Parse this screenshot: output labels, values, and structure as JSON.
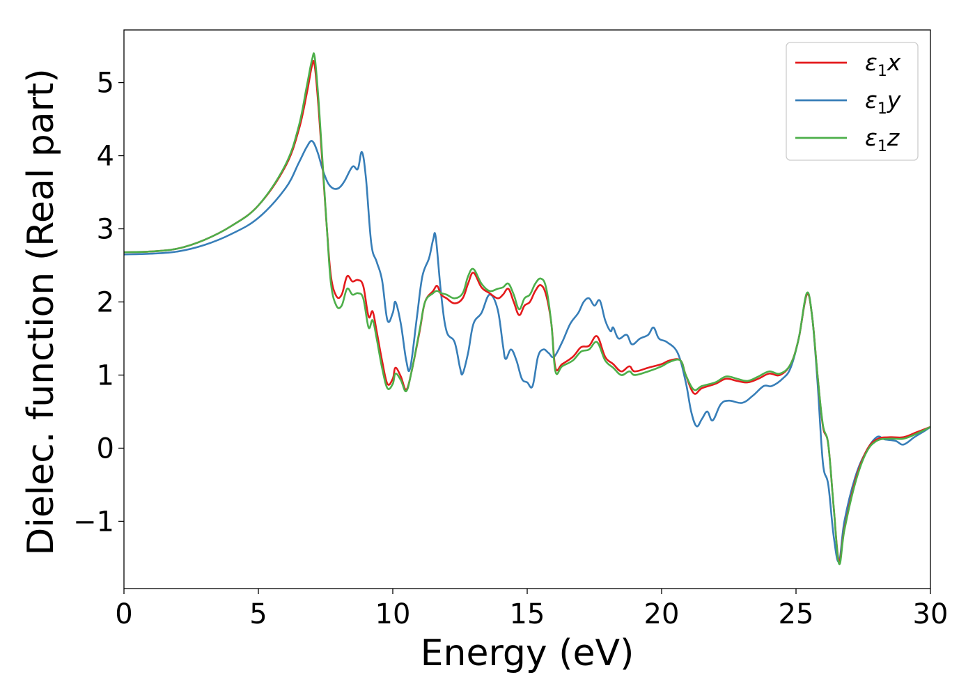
{
  "chart_data": {
    "type": "line",
    "title": "",
    "xlabel": "Energy (eV)",
    "ylabel": "Dielec. function (Real part)",
    "xlim": [
      0,
      30
    ],
    "ylim": [
      -1.92,
      5.72
    ],
    "x_ticks": [
      0,
      5,
      10,
      15,
      20,
      25,
      30
    ],
    "x_tick_labels": [
      "0",
      "5",
      "10",
      "15",
      "20",
      "25",
      "30"
    ],
    "y_ticks": [
      -1,
      0,
      1,
      2,
      3,
      4,
      5
    ],
    "y_tick_labels": [
      "−1",
      "0",
      "1",
      "2",
      "3",
      "4",
      "5"
    ],
    "grid": false,
    "legend_position": "top-right",
    "series": [
      {
        "name": "ε₁x",
        "legend": {
          "symbol": "ε",
          "sub": "1",
          "suffix": "x"
        },
        "color": "#e41a1c",
        "points": [
          [
            0,
            2.68
          ],
          [
            1,
            2.69
          ],
          [
            2,
            2.73
          ],
          [
            3,
            2.85
          ],
          [
            4,
            3.04
          ],
          [
            5,
            3.32
          ],
          [
            6,
            3.85
          ],
          [
            6.5,
            4.35
          ],
          [
            6.8,
            4.85
          ],
          [
            7.0,
            5.24
          ],
          [
            7.1,
            5.22
          ],
          [
            7.25,
            4.6
          ],
          [
            7.4,
            3.8
          ],
          [
            7.55,
            3.0
          ],
          [
            7.7,
            2.35
          ],
          [
            7.9,
            2.08
          ],
          [
            8.1,
            2.1
          ],
          [
            8.3,
            2.35
          ],
          [
            8.5,
            2.28
          ],
          [
            8.7,
            2.3
          ],
          [
            8.9,
            2.22
          ],
          [
            9.1,
            1.8
          ],
          [
            9.25,
            1.87
          ],
          [
            9.4,
            1.6
          ],
          [
            9.6,
            1.2
          ],
          [
            9.8,
            0.88
          ],
          [
            10.0,
            0.95
          ],
          [
            10.1,
            1.1
          ],
          [
            10.3,
            0.98
          ],
          [
            10.5,
            0.8
          ],
          [
            10.7,
            1.05
          ],
          [
            11.0,
            1.6
          ],
          [
            11.2,
            2.0
          ],
          [
            11.5,
            2.15
          ],
          [
            11.65,
            2.22
          ],
          [
            11.8,
            2.1
          ],
          [
            12.0,
            2.05
          ],
          [
            12.3,
            1.98
          ],
          [
            12.6,
            2.05
          ],
          [
            12.8,
            2.25
          ],
          [
            13.0,
            2.4
          ],
          [
            13.3,
            2.2
          ],
          [
            13.6,
            2.12
          ],
          [
            13.9,
            2.05
          ],
          [
            14.1,
            2.1
          ],
          [
            14.3,
            2.18
          ],
          [
            14.5,
            2.0
          ],
          [
            14.7,
            1.82
          ],
          [
            14.9,
            1.95
          ],
          [
            15.1,
            2.0
          ],
          [
            15.3,
            2.15
          ],
          [
            15.5,
            2.23
          ],
          [
            15.7,
            2.1
          ],
          [
            15.9,
            1.7
          ],
          [
            16.05,
            1.1
          ],
          [
            16.3,
            1.15
          ],
          [
            16.7,
            1.25
          ],
          [
            17.0,
            1.38
          ],
          [
            17.3,
            1.4
          ],
          [
            17.6,
            1.53
          ],
          [
            17.9,
            1.25
          ],
          [
            18.2,
            1.15
          ],
          [
            18.5,
            1.05
          ],
          [
            18.8,
            1.12
          ],
          [
            19.0,
            1.05
          ],
          [
            19.5,
            1.1
          ],
          [
            20.0,
            1.15
          ],
          [
            20.3,
            1.2
          ],
          [
            20.7,
            1.2
          ],
          [
            20.9,
            1.0
          ],
          [
            21.2,
            0.75
          ],
          [
            21.5,
            0.82
          ],
          [
            22.0,
            0.88
          ],
          [
            22.4,
            0.95
          ],
          [
            22.8,
            0.92
          ],
          [
            23.2,
            0.9
          ],
          [
            23.6,
            0.95
          ],
          [
            24.0,
            1.02
          ],
          [
            24.4,
            1.0
          ],
          [
            24.8,
            1.15
          ],
          [
            25.1,
            1.5
          ],
          [
            25.4,
            2.1
          ],
          [
            25.6,
            1.8
          ],
          [
            25.8,
            1.0
          ],
          [
            26.0,
            0.3
          ],
          [
            26.2,
            0.05
          ],
          [
            26.4,
            -0.8
          ],
          [
            26.6,
            -1.55
          ],
          [
            26.8,
            -1.1
          ],
          [
            27.2,
            -0.45
          ],
          [
            27.6,
            -0.05
          ],
          [
            28.0,
            0.12
          ],
          [
            28.5,
            0.15
          ],
          [
            29.0,
            0.15
          ],
          [
            29.5,
            0.22
          ],
          [
            30.0,
            0.29
          ]
        ]
      },
      {
        "name": "ε₁y",
        "legend": {
          "symbol": "ε",
          "sub": "1",
          "suffix": "y"
        },
        "color": "#377eb8",
        "points": [
          [
            0,
            2.65
          ],
          [
            1,
            2.66
          ],
          [
            2,
            2.69
          ],
          [
            3,
            2.78
          ],
          [
            4,
            2.93
          ],
          [
            5,
            3.15
          ],
          [
            6,
            3.55
          ],
          [
            6.5,
            3.9
          ],
          [
            6.8,
            4.12
          ],
          [
            7.0,
            4.2
          ],
          [
            7.2,
            4.05
          ],
          [
            7.4,
            3.8
          ],
          [
            7.6,
            3.62
          ],
          [
            7.8,
            3.55
          ],
          [
            8.0,
            3.56
          ],
          [
            8.2,
            3.65
          ],
          [
            8.5,
            3.85
          ],
          [
            8.7,
            3.82
          ],
          [
            8.85,
            4.05
          ],
          [
            9.0,
            3.7
          ],
          [
            9.2,
            2.8
          ],
          [
            9.4,
            2.55
          ],
          [
            9.6,
            2.3
          ],
          [
            9.8,
            1.75
          ],
          [
            10.0,
            1.85
          ],
          [
            10.1,
            2.0
          ],
          [
            10.3,
            1.7
          ],
          [
            10.5,
            1.2
          ],
          [
            10.65,
            1.1
          ],
          [
            10.9,
            1.8
          ],
          [
            11.1,
            2.35
          ],
          [
            11.35,
            2.6
          ],
          [
            11.5,
            2.85
          ],
          [
            11.6,
            2.88
          ],
          [
            11.8,
            2.1
          ],
          [
            12.0,
            1.6
          ],
          [
            12.3,
            1.45
          ],
          [
            12.5,
            1.1
          ],
          [
            12.6,
            1.02
          ],
          [
            12.8,
            1.3
          ],
          [
            13.0,
            1.7
          ],
          [
            13.3,
            1.85
          ],
          [
            13.6,
            2.1
          ],
          [
            13.9,
            1.9
          ],
          [
            14.1,
            1.4
          ],
          [
            14.2,
            1.22
          ],
          [
            14.4,
            1.35
          ],
          [
            14.6,
            1.2
          ],
          [
            14.8,
            0.95
          ],
          [
            15.0,
            0.9
          ],
          [
            15.2,
            0.85
          ],
          [
            15.4,
            1.25
          ],
          [
            15.6,
            1.35
          ],
          [
            15.8,
            1.3
          ],
          [
            16.0,
            1.25
          ],
          [
            16.3,
            1.45
          ],
          [
            16.6,
            1.7
          ],
          [
            16.9,
            1.85
          ],
          [
            17.1,
            2.0
          ],
          [
            17.3,
            2.05
          ],
          [
            17.5,
            1.95
          ],
          [
            17.7,
            2.02
          ],
          [
            17.9,
            1.75
          ],
          [
            18.1,
            1.6
          ],
          [
            18.2,
            1.65
          ],
          [
            18.4,
            1.5
          ],
          [
            18.7,
            1.55
          ],
          [
            18.9,
            1.42
          ],
          [
            19.2,
            1.5
          ],
          [
            19.5,
            1.55
          ],
          [
            19.7,
            1.65
          ],
          [
            19.9,
            1.5
          ],
          [
            20.2,
            1.45
          ],
          [
            20.6,
            1.3
          ],
          [
            20.9,
            0.9
          ],
          [
            21.1,
            0.5
          ],
          [
            21.3,
            0.3
          ],
          [
            21.5,
            0.4
          ],
          [
            21.7,
            0.5
          ],
          [
            21.9,
            0.38
          ],
          [
            22.2,
            0.6
          ],
          [
            22.5,
            0.65
          ],
          [
            23.0,
            0.62
          ],
          [
            23.4,
            0.72
          ],
          [
            23.8,
            0.85
          ],
          [
            24.1,
            0.85
          ],
          [
            24.5,
            0.95
          ],
          [
            24.8,
            1.1
          ],
          [
            25.1,
            1.5
          ],
          [
            25.4,
            2.1
          ],
          [
            25.6,
            1.8
          ],
          [
            25.8,
            0.9
          ],
          [
            26.0,
            -0.2
          ],
          [
            26.2,
            -0.5
          ],
          [
            26.4,
            -1.2
          ],
          [
            26.6,
            -1.55
          ],
          [
            26.8,
            -1.0
          ],
          [
            27.2,
            -0.4
          ],
          [
            27.6,
            -0.05
          ],
          [
            28.0,
            0.15
          ],
          [
            28.3,
            0.12
          ],
          [
            28.7,
            0.1
          ],
          [
            29.0,
            0.05
          ],
          [
            29.4,
            0.15
          ],
          [
            29.8,
            0.24
          ],
          [
            30.0,
            0.29
          ]
        ]
      },
      {
        "name": "ε₁z",
        "legend": {
          "symbol": "ε",
          "sub": "1",
          "suffix": "z"
        },
        "color": "#4daf4a",
        "points": [
          [
            0,
            2.68
          ],
          [
            1,
            2.69
          ],
          [
            2,
            2.73
          ],
          [
            3,
            2.85
          ],
          [
            4,
            3.04
          ],
          [
            5,
            3.32
          ],
          [
            6,
            3.87
          ],
          [
            6.5,
            4.4
          ],
          [
            6.8,
            4.95
          ],
          [
            7.0,
            5.32
          ],
          [
            7.1,
            5.34
          ],
          [
            7.25,
            4.7
          ],
          [
            7.4,
            3.85
          ],
          [
            7.55,
            3.0
          ],
          [
            7.7,
            2.25
          ],
          [
            7.9,
            1.95
          ],
          [
            8.1,
            1.95
          ],
          [
            8.3,
            2.18
          ],
          [
            8.5,
            2.1
          ],
          [
            8.7,
            2.12
          ],
          [
            8.9,
            2.05
          ],
          [
            9.1,
            1.65
          ],
          [
            9.25,
            1.75
          ],
          [
            9.4,
            1.5
          ],
          [
            9.6,
            1.1
          ],
          [
            9.8,
            0.82
          ],
          [
            10.0,
            0.88
          ],
          [
            10.1,
            1.02
          ],
          [
            10.3,
            0.93
          ],
          [
            10.5,
            0.78
          ],
          [
            10.7,
            1.05
          ],
          [
            11.0,
            1.62
          ],
          [
            11.2,
            2.0
          ],
          [
            11.5,
            2.12
          ],
          [
            11.65,
            2.15
          ],
          [
            11.8,
            2.12
          ],
          [
            12.0,
            2.1
          ],
          [
            12.3,
            2.05
          ],
          [
            12.6,
            2.12
          ],
          [
            12.8,
            2.35
          ],
          [
            13.0,
            2.45
          ],
          [
            13.3,
            2.25
          ],
          [
            13.6,
            2.15
          ],
          [
            13.9,
            2.18
          ],
          [
            14.1,
            2.2
          ],
          [
            14.3,
            2.25
          ],
          [
            14.5,
            2.1
          ],
          [
            14.7,
            1.9
          ],
          [
            14.9,
            2.05
          ],
          [
            15.1,
            2.1
          ],
          [
            15.3,
            2.25
          ],
          [
            15.5,
            2.32
          ],
          [
            15.7,
            2.2
          ],
          [
            15.9,
            1.7
          ],
          [
            16.05,
            1.05
          ],
          [
            16.3,
            1.12
          ],
          [
            16.7,
            1.2
          ],
          [
            17.0,
            1.32
          ],
          [
            17.3,
            1.35
          ],
          [
            17.6,
            1.45
          ],
          [
            17.9,
            1.2
          ],
          [
            18.2,
            1.1
          ],
          [
            18.5,
            1.0
          ],
          [
            18.8,
            1.05
          ],
          [
            19.0,
            1.0
          ],
          [
            19.5,
            1.05
          ],
          [
            20.0,
            1.12
          ],
          [
            20.3,
            1.18
          ],
          [
            20.7,
            1.2
          ],
          [
            20.9,
            1.0
          ],
          [
            21.2,
            0.8
          ],
          [
            21.5,
            0.85
          ],
          [
            22.0,
            0.9
          ],
          [
            22.4,
            0.98
          ],
          [
            22.8,
            0.95
          ],
          [
            23.2,
            0.92
          ],
          [
            23.6,
            0.98
          ],
          [
            24.0,
            1.05
          ],
          [
            24.4,
            1.02
          ],
          [
            24.8,
            1.15
          ],
          [
            25.1,
            1.5
          ],
          [
            25.4,
            2.12
          ],
          [
            25.6,
            1.8
          ],
          [
            25.8,
            1.0
          ],
          [
            26.0,
            0.32
          ],
          [
            26.2,
            0.05
          ],
          [
            26.4,
            -0.8
          ],
          [
            26.6,
            -1.58
          ],
          [
            26.8,
            -1.12
          ],
          [
            27.2,
            -0.48
          ],
          [
            27.6,
            -0.07
          ],
          [
            28.0,
            0.1
          ],
          [
            28.5,
            0.13
          ],
          [
            29.0,
            0.13
          ],
          [
            29.5,
            0.2
          ],
          [
            30.0,
            0.29
          ]
        ]
      }
    ]
  }
}
